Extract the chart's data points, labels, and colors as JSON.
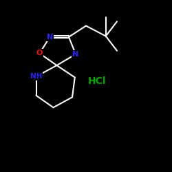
{
  "background_color": "#000000",
  "bond_color": "#ffffff",
  "bond_width": 1.5,
  "atom_colors": {
    "N": "#2222ff",
    "O": "#ff1100",
    "HCl": "#00aa00",
    "NH": "#2222ff"
  },
  "font_size_atom": 8,
  "font_size_hcl": 10,
  "figsize": [
    2.5,
    2.5
  ],
  "dpi": 100,
  "xlim": [
    0,
    10
  ],
  "ylim": [
    0,
    10
  ]
}
